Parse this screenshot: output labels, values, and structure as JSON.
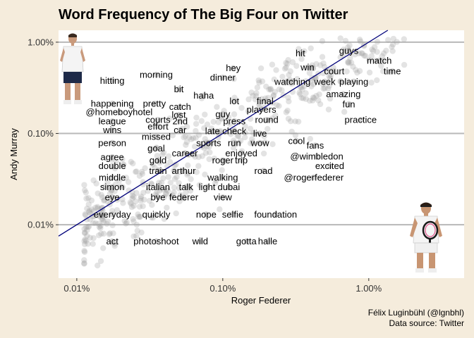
{
  "chart_data": {
    "type": "scatter",
    "title": "Word Frequency of The Big Four on Twitter",
    "xlabel": "Roger Federer",
    "ylabel": "Andy Murray",
    "x_scale": "log",
    "y_scale": "log",
    "xlim": [
      0.0075,
      4.5
    ],
    "ylim": [
      0.0026,
      1.35
    ],
    "x_ticks": [
      {
        "value": 0.01,
        "label": "0.01%"
      },
      {
        "value": 0.1,
        "label": "0.10%"
      },
      {
        "value": 1.0,
        "label": "1.00%"
      }
    ],
    "y_ticks": [
      {
        "value": 0.01,
        "label": "0.01%"
      },
      {
        "value": 0.1,
        "label": "0.10%"
      },
      {
        "value": 1.0,
        "label": "1.00%"
      }
    ],
    "reference_line": "y = x",
    "grid": "horizontal",
    "colors": {
      "background": "#f5ecdc",
      "panel": "#ffffff",
      "grid": "#b8b8b8",
      "line": "#00007a",
      "points": "#9a9a9a"
    },
    "labeled_words": [
      {
        "word": "guys",
        "x": 0.73,
        "y": 0.81
      },
      {
        "word": "hit",
        "x": 0.34,
        "y": 0.76
      },
      {
        "word": "match",
        "x": 1.18,
        "y": 0.63
      },
      {
        "word": "win",
        "x": 0.38,
        "y": 0.53
      },
      {
        "word": "hey",
        "x": 0.118,
        "y": 0.52
      },
      {
        "word": "court",
        "x": 0.58,
        "y": 0.48
      },
      {
        "word": "time",
        "x": 1.45,
        "y": 0.48
      },
      {
        "word": "morning",
        "x": 0.035,
        "y": 0.44
      },
      {
        "word": "dinner",
        "x": 0.1,
        "y": 0.41
      },
      {
        "word": "watching",
        "x": 0.3,
        "y": 0.37
      },
      {
        "word": "week",
        "x": 0.5,
        "y": 0.37
      },
      {
        "word": "playing",
        "x": 0.79,
        "y": 0.37
      },
      {
        "word": "hitting",
        "x": 0.0175,
        "y": 0.38
      },
      {
        "word": "bit",
        "x": 0.05,
        "y": 0.305
      },
      {
        "word": "haha",
        "x": 0.074,
        "y": 0.26
      },
      {
        "word": "amazing",
        "x": 0.67,
        "y": 0.27
      },
      {
        "word": "lot",
        "x": 0.12,
        "y": 0.226
      },
      {
        "word": "final",
        "x": 0.195,
        "y": 0.226
      },
      {
        "word": "fun",
        "x": 0.73,
        "y": 0.21
      },
      {
        "word": "happening",
        "x": 0.0175,
        "y": 0.212
      },
      {
        "word": "pretty",
        "x": 0.034,
        "y": 0.212
      },
      {
        "word": "catch",
        "x": 0.051,
        "y": 0.196
      },
      {
        "word": "players",
        "x": 0.184,
        "y": 0.183
      },
      {
        "word": "@homeboyhotel",
        "x": 0.0195,
        "y": 0.172
      },
      {
        "word": "lost",
        "x": 0.05,
        "y": 0.16
      },
      {
        "word": "guy",
        "x": 0.1,
        "y": 0.163
      },
      {
        "word": "courts",
        "x": 0.036,
        "y": 0.141
      },
      {
        "word": "2nd",
        "x": 0.051,
        "y": 0.136
      },
      {
        "word": "press",
        "x": 0.12,
        "y": 0.137
      },
      {
        "word": "round",
        "x": 0.2,
        "y": 0.141
      },
      {
        "word": "practice",
        "x": 0.88,
        "y": 0.141
      },
      {
        "word": "league",
        "x": 0.0175,
        "y": 0.136
      },
      {
        "word": "effort",
        "x": 0.036,
        "y": 0.119
      },
      {
        "word": "car",
        "x": 0.051,
        "y": 0.109
      },
      {
        "word": "late",
        "x": 0.085,
        "y": 0.106
      },
      {
        "word": "check",
        "x": 0.12,
        "y": 0.106
      },
      {
        "word": "wins",
        "x": 0.0175,
        "y": 0.109
      },
      {
        "word": "live",
        "x": 0.18,
        "y": 0.1
      },
      {
        "word": "missed",
        "x": 0.035,
        "y": 0.092
      },
      {
        "word": "cool",
        "x": 0.32,
        "y": 0.083
      },
      {
        "word": "person",
        "x": 0.0175,
        "y": 0.079
      },
      {
        "word": "sports",
        "x": 0.08,
        "y": 0.079
      },
      {
        "word": "run",
        "x": 0.12,
        "y": 0.079
      },
      {
        "word": "wow",
        "x": 0.18,
        "y": 0.079
      },
      {
        "word": "fans",
        "x": 0.43,
        "y": 0.074
      },
      {
        "word": "goal",
        "x": 0.035,
        "y": 0.069
      },
      {
        "word": "career",
        "x": 0.055,
        "y": 0.061
      },
      {
        "word": "enjoyed",
        "x": 0.134,
        "y": 0.061
      },
      {
        "word": "@wimbledon",
        "x": 0.44,
        "y": 0.056
      },
      {
        "word": "agree",
        "x": 0.0175,
        "y": 0.055
      },
      {
        "word": "gold",
        "x": 0.036,
        "y": 0.051
      },
      {
        "word": "roger",
        "x": 0.1,
        "y": 0.051
      },
      {
        "word": "trip",
        "x": 0.134,
        "y": 0.051
      },
      {
        "word": "excited",
        "x": 0.54,
        "y": 0.044
      },
      {
        "word": "double",
        "x": 0.0175,
        "y": 0.044
      },
      {
        "word": "train",
        "x": 0.036,
        "y": 0.039
      },
      {
        "word": "arthur",
        "x": 0.054,
        "y": 0.039
      },
      {
        "word": "road",
        "x": 0.19,
        "y": 0.039
      },
      {
        "word": "@rogerfederer",
        "x": 0.42,
        "y": 0.033
      },
      {
        "word": "middle",
        "x": 0.0175,
        "y": 0.033
      },
      {
        "word": "walking",
        "x": 0.1,
        "y": 0.033
      },
      {
        "word": "simon",
        "x": 0.0175,
        "y": 0.026
      },
      {
        "word": "italian",
        "x": 0.036,
        "y": 0.026
      },
      {
        "word": "talk",
        "x": 0.056,
        "y": 0.026
      },
      {
        "word": "light",
        "x": 0.078,
        "y": 0.026
      },
      {
        "word": "dubai",
        "x": 0.11,
        "y": 0.026
      },
      {
        "word": "eye",
        "x": 0.0175,
        "y": 0.02
      },
      {
        "word": "bye",
        "x": 0.036,
        "y": 0.02
      },
      {
        "word": "federer",
        "x": 0.054,
        "y": 0.02
      },
      {
        "word": "view",
        "x": 0.1,
        "y": 0.02
      },
      {
        "word": "everyday",
        "x": 0.0175,
        "y": 0.013
      },
      {
        "word": "quickly",
        "x": 0.035,
        "y": 0.013
      },
      {
        "word": "nope",
        "x": 0.077,
        "y": 0.013
      },
      {
        "word": "selfie",
        "x": 0.117,
        "y": 0.013
      },
      {
        "word": "foundation",
        "x": 0.23,
        "y": 0.013
      },
      {
        "word": "act",
        "x": 0.0175,
        "y": 0.0066
      },
      {
        "word": "photoshoot",
        "x": 0.035,
        "y": 0.0066
      },
      {
        "word": "wild",
        "x": 0.07,
        "y": 0.0066
      },
      {
        "word": "gotta",
        "x": 0.145,
        "y": 0.0066
      },
      {
        "word": "halle",
        "x": 0.203,
        "y": 0.0066
      }
    ]
  },
  "caption": {
    "author": "Félix Luginbühl (@lgnbhl)",
    "source": "Data source: Twitter"
  }
}
